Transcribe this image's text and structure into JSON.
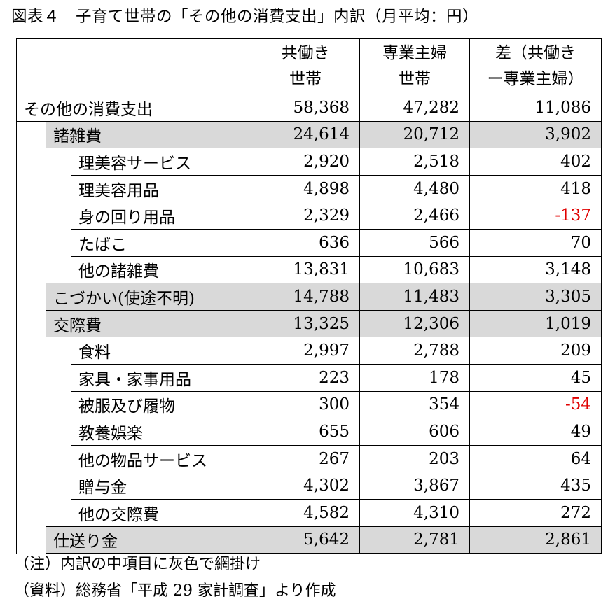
{
  "title": "図表４　子育て世帯の「その他の消費支出」内訳（月平均：円）",
  "headers": {
    "col1_line1": "共働き",
    "col1_line2": "世帯",
    "col2_line1": "専業主婦",
    "col2_line2": "世帯",
    "col3_line1": "差（共働き",
    "col3_line2": "ー専業主婦）"
  },
  "rows": [
    {
      "label": "その他の消費支出",
      "a": "58,368",
      "b": "47,282",
      "d": "11,086"
    },
    {
      "label": "諸雑費",
      "a": "24,614",
      "b": "20,712",
      "d": "3,902"
    },
    {
      "label": "理美容サービス",
      "a": "2,920",
      "b": "2,518",
      "d": "402"
    },
    {
      "label": "理美容用品",
      "a": "4,898",
      "b": "4,480",
      "d": "418"
    },
    {
      "label": "身の回り用品",
      "a": "2,329",
      "b": "2,466",
      "d": "-137"
    },
    {
      "label": "たばこ",
      "a": "636",
      "b": "566",
      "d": "70"
    },
    {
      "label": "他の諸雑費",
      "a": "13,831",
      "b": "10,683",
      "d": "3,148"
    },
    {
      "label": "こづかい(使途不明)",
      "a": "14,788",
      "b": "11,483",
      "d": "3,305"
    },
    {
      "label": "交際費",
      "a": "13,325",
      "b": "12,306",
      "d": "1,019"
    },
    {
      "label": "食料",
      "a": "2,997",
      "b": "2,788",
      "d": "209"
    },
    {
      "label": "家具・家事用品",
      "a": "223",
      "b": "178",
      "d": "45"
    },
    {
      "label": "被服及び履物",
      "a": "300",
      "b": "354",
      "d": "-54"
    },
    {
      "label": "教養娯楽",
      "a": "655",
      "b": "606",
      "d": "49"
    },
    {
      "label": "他の物品サービス",
      "a": "267",
      "b": "203",
      "d": "64"
    },
    {
      "label": "贈与金",
      "a": "4,302",
      "b": "3,867",
      "d": "435"
    },
    {
      "label": "他の交際費",
      "a": "4,582",
      "b": "4,310",
      "d": "272"
    },
    {
      "label": "仕送り金",
      "a": "5,642",
      "b": "2,781",
      "d": "2,861"
    }
  ],
  "colors": {
    "shade": "#d9d9d9",
    "negative": "#e00000"
  },
  "notes": {
    "note1": "（注）内訳の中項目に灰色で網掛け",
    "note2": "（資料）総務省「平成 29 家計調査」より作成"
  }
}
